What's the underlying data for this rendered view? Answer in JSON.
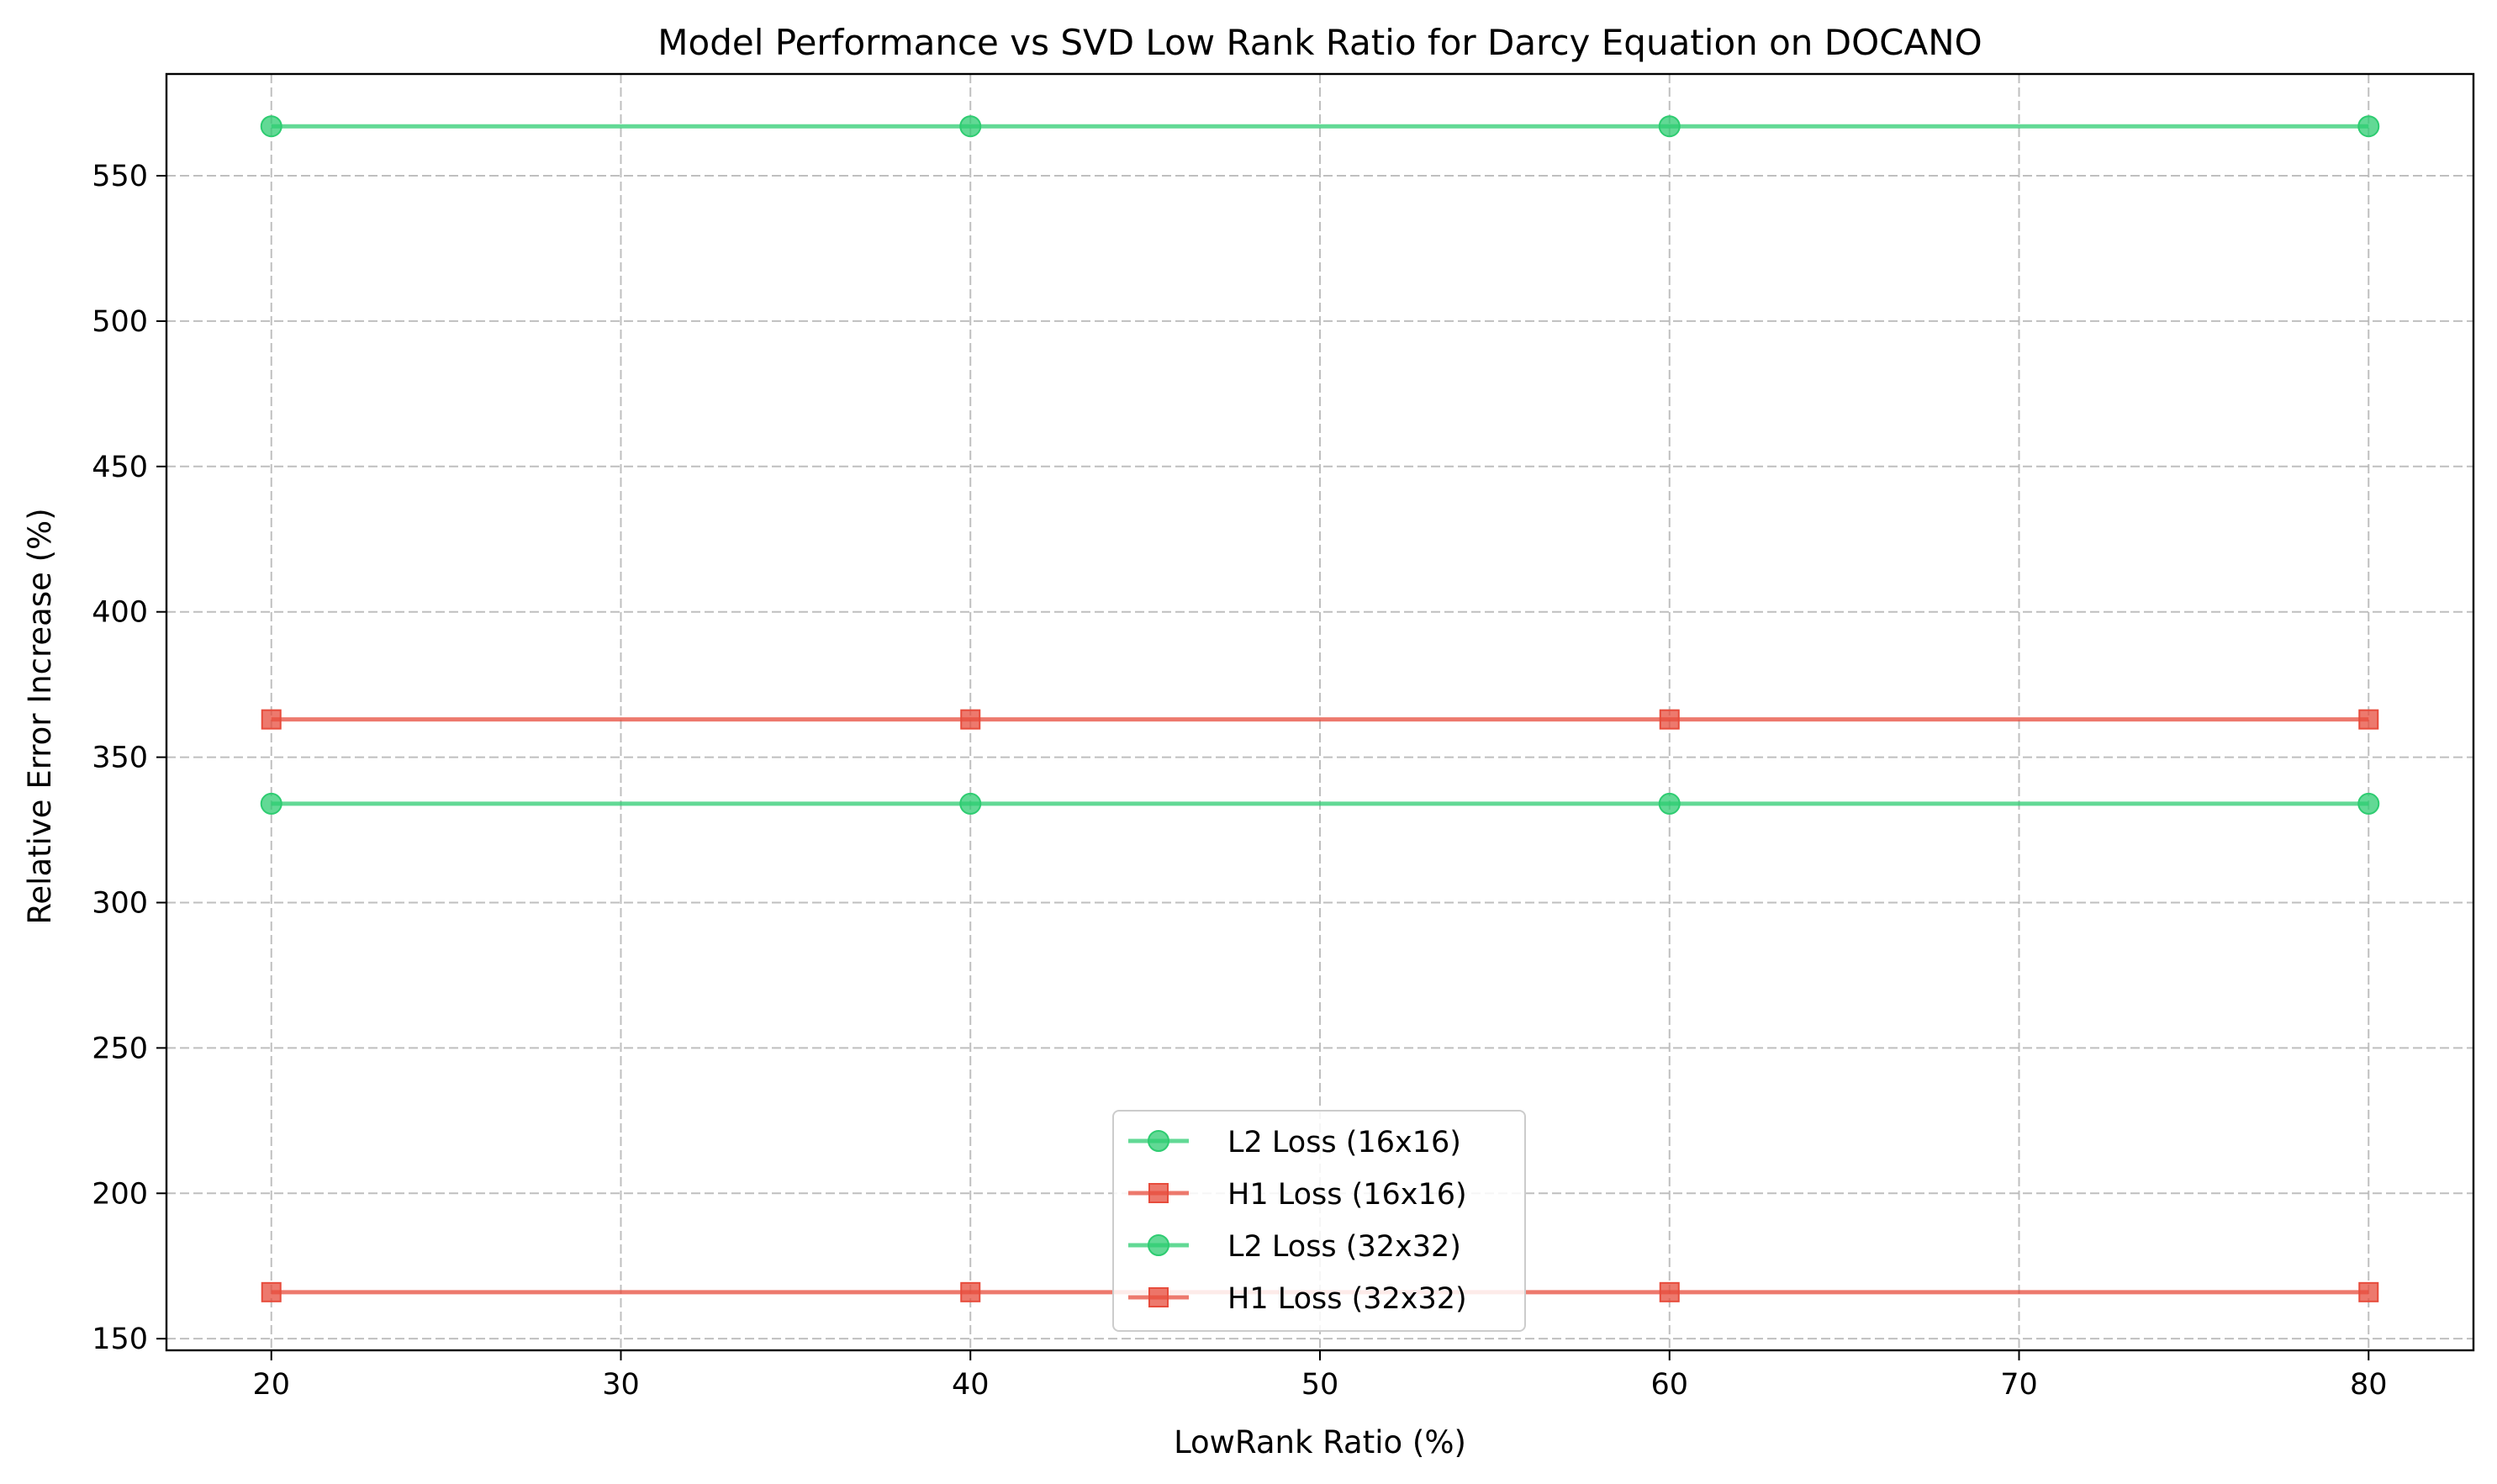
{
  "chart_data": {
    "type": "line",
    "title": "Model Performance vs SVD Low Rank Ratio for Darcy Equation on DOCANO",
    "xlabel": "LowRank Ratio (%)",
    "ylabel": "Relative Error Increase (%)",
    "x": [
      20,
      40,
      60,
      80
    ],
    "xlim": [
      17,
      83
    ],
    "ylim": [
      146,
      585
    ],
    "xticks": [
      20,
      30,
      40,
      50,
      60,
      70,
      80
    ],
    "yticks": [
      150,
      200,
      250,
      300,
      350,
      400,
      450,
      500,
      550
    ],
    "grid": true,
    "legend_position": "bottom-center",
    "series": [
      {
        "name": "L2 Loss (16x16)",
        "values": [
          567,
          567,
          567,
          567
        ],
        "color": "#2ecc71",
        "marker": "circle"
      },
      {
        "name": "H1 Loss (16x16)",
        "values": [
          363,
          363,
          363,
          363
        ],
        "color": "#e74c3c",
        "marker": "square"
      },
      {
        "name": "L2 Loss (32x32)",
        "values": [
          334,
          334,
          334,
          334
        ],
        "color": "#2ecc71",
        "marker": "circle"
      },
      {
        "name": "H1 Loss (32x32)",
        "values": [
          166,
          166,
          166,
          166
        ],
        "color": "#e74c3c",
        "marker": "square"
      }
    ]
  }
}
